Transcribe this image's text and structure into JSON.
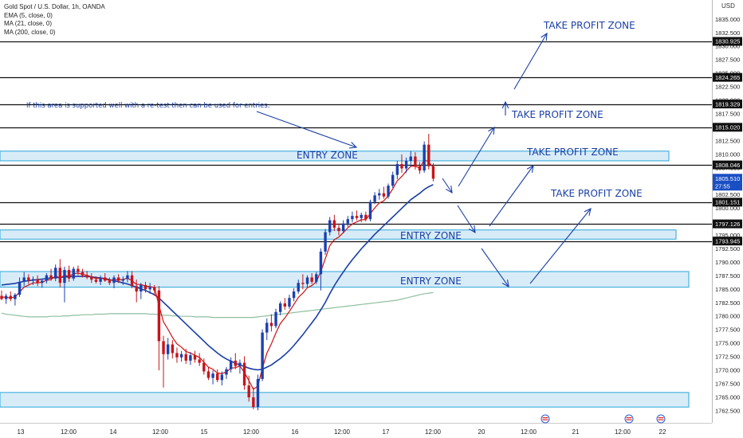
{
  "legend": {
    "symbol": "Gold Spot / U.S. Dollar, 1h, OANDA",
    "ema": "EMA (5, close, 0)",
    "ma21": "MA (21, close, 0)",
    "ma200": "MA (200, close, 0)"
  },
  "currency": "USD",
  "annotations": {
    "note": "If this area is supported well with a re-test then can be used for entries.",
    "entry_zone_labels": [
      "ENTRY ZONE",
      "ENTRY ZONE",
      "ENTRY ZONE"
    ],
    "take_profit_labels": [
      "TAKE PROFIT ZONE",
      "TAKE PROFIT ZONE",
      "TAKE PROFIT ZONE",
      "TAKE PROFIT ZONE"
    ]
  },
  "colors": {
    "up": "#1d3fb0",
    "down": "#c8141a",
    "ema": "#cc1111",
    "ma21": "#1a3fa6",
    "ma200": "#8fbf9f",
    "zone_fill": "#d8ecf8",
    "zone_border": "#2aa6d9",
    "annotation": "#1a3fa6"
  },
  "chart_data": {
    "type": "candlestick",
    "title": "Gold Spot / U.S. Dollar, 1h, OANDA",
    "ylim": [
      1761,
      1838
    ],
    "y_ticks": [
      1762.5,
      1765.0,
      1767.5,
      1770.0,
      1772.5,
      1775.0,
      1777.5,
      1780.0,
      1782.5,
      1785.0,
      1787.5,
      1790.0,
      1792.5,
      1795.0,
      1797.5,
      1800.0,
      1802.5,
      1805.0,
      1807.5,
      1810.0,
      1812.5,
      1815.0,
      1817.5,
      1820.0,
      1822.5,
      1825.0,
      1827.5,
      1830.0,
      1832.5,
      1835.0
    ],
    "x_ticks": [
      "13",
      "12:00",
      "14",
      "12:00",
      "15",
      "12:00",
      "16",
      "12:00",
      "17",
      "12:00",
      "20",
      "12:00",
      "21",
      "12:00",
      "22"
    ],
    "horizontal_levels": [
      {
        "value": 1830.925,
        "label": "1830.925"
      },
      {
        "value": 1824.265,
        "label": "1824.265"
      },
      {
        "value": 1819.329,
        "label": "1819.329"
      },
      {
        "value": 1815.02,
        "label": "1815.020"
      },
      {
        "value": 1808.046,
        "label": "1808.046"
      },
      {
        "value": 1801.151,
        "label": "1801.151"
      },
      {
        "value": 1797.126,
        "label": "1797.126"
      },
      {
        "value": 1793.945,
        "label": "1793.945"
      }
    ],
    "last_price": {
      "value": 1805.51,
      "label": "1805.510",
      "countdown": "27:55"
    },
    "zones": [
      {
        "name": "entry-zone-top",
        "from": 1808.8,
        "to": 1810.6
      },
      {
        "name": "entry-zone-middle",
        "from": 1794.3,
        "to": 1796.0
      },
      {
        "name": "entry-zone-lower",
        "from": 1785.4,
        "to": 1788.3
      },
      {
        "name": "bottom-zone",
        "from": 1763.2,
        "to": 1765.9
      }
    ],
    "candles": [
      {
        "o": 1783.8,
        "h": 1784.8,
        "l": 1783.0,
        "c": 1783.2
      },
      {
        "o": 1783.2,
        "h": 1784.2,
        "l": 1782.3,
        "c": 1783.8
      },
      {
        "o": 1783.8,
        "h": 1784.6,
        "l": 1782.8,
        "c": 1783.2
      },
      {
        "o": 1783.2,
        "h": 1784.3,
        "l": 1782.0,
        "c": 1784.0
      },
      {
        "o": 1784.0,
        "h": 1787.2,
        "l": 1783.6,
        "c": 1786.4
      },
      {
        "o": 1786.4,
        "h": 1788.2,
        "l": 1785.6,
        "c": 1787.2
      },
      {
        "o": 1787.2,
        "h": 1787.8,
        "l": 1786.0,
        "c": 1786.6
      },
      {
        "o": 1786.6,
        "h": 1787.4,
        "l": 1785.8,
        "c": 1786.9
      },
      {
        "o": 1786.9,
        "h": 1787.6,
        "l": 1785.6,
        "c": 1786.2
      },
      {
        "o": 1786.2,
        "h": 1787.0,
        "l": 1785.3,
        "c": 1786.6
      },
      {
        "o": 1786.6,
        "h": 1788.0,
        "l": 1786.1,
        "c": 1787.6
      },
      {
        "o": 1787.6,
        "h": 1788.8,
        "l": 1786.6,
        "c": 1787.0
      },
      {
        "o": 1787.0,
        "h": 1789.6,
        "l": 1786.5,
        "c": 1789.0
      },
      {
        "o": 1789.0,
        "h": 1790.6,
        "l": 1785.4,
        "c": 1786.2
      },
      {
        "o": 1786.2,
        "h": 1789.2,
        "l": 1782.6,
        "c": 1788.6
      },
      {
        "o": 1788.6,
        "h": 1789.4,
        "l": 1786.4,
        "c": 1787.0
      },
      {
        "o": 1787.0,
        "h": 1789.2,
        "l": 1786.6,
        "c": 1788.8
      },
      {
        "o": 1788.8,
        "h": 1789.4,
        "l": 1787.6,
        "c": 1788.2
      },
      {
        "o": 1788.2,
        "h": 1788.8,
        "l": 1787.2,
        "c": 1787.6
      },
      {
        "o": 1787.6,
        "h": 1788.4,
        "l": 1786.9,
        "c": 1787.2
      },
      {
        "o": 1787.2,
        "h": 1788.0,
        "l": 1786.2,
        "c": 1786.8
      },
      {
        "o": 1786.8,
        "h": 1787.4,
        "l": 1786.1,
        "c": 1786.4
      },
      {
        "o": 1786.4,
        "h": 1787.6,
        "l": 1785.8,
        "c": 1787.2
      },
      {
        "o": 1787.2,
        "h": 1788.0,
        "l": 1786.4,
        "c": 1786.6
      },
      {
        "o": 1786.6,
        "h": 1787.2,
        "l": 1785.8,
        "c": 1786.2
      },
      {
        "o": 1786.2,
        "h": 1787.6,
        "l": 1785.2,
        "c": 1787.2
      },
      {
        "o": 1787.2,
        "h": 1787.8,
        "l": 1786.2,
        "c": 1786.6
      },
      {
        "o": 1786.6,
        "h": 1787.4,
        "l": 1785.8,
        "c": 1786.9
      },
      {
        "o": 1786.9,
        "h": 1788.4,
        "l": 1786.3,
        "c": 1787.6
      },
      {
        "o": 1787.6,
        "h": 1788.4,
        "l": 1785.2,
        "c": 1785.6
      },
      {
        "o": 1785.6,
        "h": 1786.8,
        "l": 1782.6,
        "c": 1784.6
      },
      {
        "o": 1784.6,
        "h": 1786.2,
        "l": 1783.2,
        "c": 1785.8
      },
      {
        "o": 1785.8,
        "h": 1786.4,
        "l": 1784.4,
        "c": 1785.0
      },
      {
        "o": 1785.0,
        "h": 1786.2,
        "l": 1784.2,
        "c": 1785.4
      },
      {
        "o": 1785.4,
        "h": 1785.8,
        "l": 1783.8,
        "c": 1784.8
      },
      {
        "o": 1784.8,
        "h": 1785.6,
        "l": 1770.0,
        "c": 1775.4
      },
      {
        "o": 1775.4,
        "h": 1776.4,
        "l": 1766.8,
        "c": 1773.0
      },
      {
        "o": 1773.0,
        "h": 1776.0,
        "l": 1772.0,
        "c": 1774.8
      },
      {
        "o": 1774.8,
        "h": 1775.6,
        "l": 1772.2,
        "c": 1773.2
      },
      {
        "o": 1773.2,
        "h": 1774.2,
        "l": 1771.4,
        "c": 1772.4
      },
      {
        "o": 1772.4,
        "h": 1773.6,
        "l": 1771.6,
        "c": 1773.0
      },
      {
        "o": 1773.0,
        "h": 1774.0,
        "l": 1771.2,
        "c": 1771.8
      },
      {
        "o": 1771.8,
        "h": 1773.4,
        "l": 1771.0,
        "c": 1772.8
      },
      {
        "o": 1772.8,
        "h": 1773.6,
        "l": 1771.4,
        "c": 1772.0
      },
      {
        "o": 1772.0,
        "h": 1773.2,
        "l": 1770.8,
        "c": 1771.4
      },
      {
        "o": 1771.4,
        "h": 1772.2,
        "l": 1769.2,
        "c": 1769.8
      },
      {
        "o": 1769.8,
        "h": 1770.6,
        "l": 1768.2,
        "c": 1768.6
      },
      {
        "o": 1768.6,
        "h": 1770.0,
        "l": 1767.4,
        "c": 1769.4
      },
      {
        "o": 1769.4,
        "h": 1770.2,
        "l": 1767.8,
        "c": 1768.2
      },
      {
        "o": 1768.2,
        "h": 1769.8,
        "l": 1767.2,
        "c": 1769.2
      },
      {
        "o": 1769.2,
        "h": 1770.6,
        "l": 1768.4,
        "c": 1770.2
      },
      {
        "o": 1770.2,
        "h": 1772.4,
        "l": 1769.6,
        "c": 1771.8
      },
      {
        "o": 1771.8,
        "h": 1773.2,
        "l": 1770.2,
        "c": 1770.8
      },
      {
        "o": 1770.8,
        "h": 1772.0,
        "l": 1769.4,
        "c": 1771.4
      },
      {
        "o": 1771.4,
        "h": 1772.6,
        "l": 1766.4,
        "c": 1767.2
      },
      {
        "o": 1767.2,
        "h": 1769.0,
        "l": 1764.2,
        "c": 1765.0
      },
      {
        "o": 1765.0,
        "h": 1766.8,
        "l": 1762.8,
        "c": 1763.2
      },
      {
        "o": 1763.2,
        "h": 1769.2,
        "l": 1762.6,
        "c": 1768.4
      },
      {
        "o": 1768.4,
        "h": 1777.6,
        "l": 1768.0,
        "c": 1777.0
      },
      {
        "o": 1777.0,
        "h": 1779.6,
        "l": 1775.6,
        "c": 1778.8
      },
      {
        "o": 1778.8,
        "h": 1780.4,
        "l": 1777.2,
        "c": 1778.2
      },
      {
        "o": 1778.2,
        "h": 1781.4,
        "l": 1777.8,
        "c": 1780.8
      },
      {
        "o": 1780.8,
        "h": 1782.8,
        "l": 1780.2,
        "c": 1782.4
      },
      {
        "o": 1782.4,
        "h": 1783.4,
        "l": 1781.2,
        "c": 1781.8
      },
      {
        "o": 1781.8,
        "h": 1784.0,
        "l": 1781.4,
        "c": 1783.4
      },
      {
        "o": 1783.4,
        "h": 1785.2,
        "l": 1782.8,
        "c": 1784.6
      },
      {
        "o": 1784.6,
        "h": 1786.8,
        "l": 1784.2,
        "c": 1786.2
      },
      {
        "o": 1786.2,
        "h": 1787.8,
        "l": 1785.0,
        "c": 1786.0
      },
      {
        "o": 1786.0,
        "h": 1787.6,
        "l": 1785.4,
        "c": 1787.2
      },
      {
        "o": 1787.2,
        "h": 1788.0,
        "l": 1786.0,
        "c": 1786.4
      },
      {
        "o": 1786.4,
        "h": 1788.2,
        "l": 1786.0,
        "c": 1787.8
      },
      {
        "o": 1787.8,
        "h": 1792.6,
        "l": 1784.8,
        "c": 1792.0
      },
      {
        "o": 1792.0,
        "h": 1796.2,
        "l": 1791.4,
        "c": 1795.6
      },
      {
        "o": 1795.6,
        "h": 1798.4,
        "l": 1795.0,
        "c": 1797.8
      },
      {
        "o": 1797.8,
        "h": 1798.8,
        "l": 1795.8,
        "c": 1796.4
      },
      {
        "o": 1796.4,
        "h": 1797.2,
        "l": 1795.0,
        "c": 1795.8
      },
      {
        "o": 1795.8,
        "h": 1797.8,
        "l": 1795.4,
        "c": 1797.2
      },
      {
        "o": 1797.2,
        "h": 1798.6,
        "l": 1796.6,
        "c": 1798.0
      },
      {
        "o": 1798.0,
        "h": 1799.4,
        "l": 1797.4,
        "c": 1798.6
      },
      {
        "o": 1798.6,
        "h": 1799.6,
        "l": 1797.8,
        "c": 1798.2
      },
      {
        "o": 1798.2,
        "h": 1799.2,
        "l": 1797.4,
        "c": 1798.8
      },
      {
        "o": 1798.8,
        "h": 1799.4,
        "l": 1797.6,
        "c": 1798.0
      },
      {
        "o": 1798.0,
        "h": 1801.6,
        "l": 1797.6,
        "c": 1801.2
      },
      {
        "o": 1801.2,
        "h": 1803.0,
        "l": 1800.8,
        "c": 1802.4
      },
      {
        "o": 1802.4,
        "h": 1803.6,
        "l": 1801.6,
        "c": 1802.8
      },
      {
        "o": 1802.8,
        "h": 1804.0,
        "l": 1801.8,
        "c": 1802.2
      },
      {
        "o": 1802.2,
        "h": 1804.6,
        "l": 1801.8,
        "c": 1804.2
      },
      {
        "o": 1804.2,
        "h": 1806.8,
        "l": 1803.8,
        "c": 1806.2
      },
      {
        "o": 1806.2,
        "h": 1808.8,
        "l": 1805.4,
        "c": 1808.2
      },
      {
        "o": 1808.2,
        "h": 1810.0,
        "l": 1806.6,
        "c": 1807.4
      },
      {
        "o": 1807.4,
        "h": 1809.4,
        "l": 1806.6,
        "c": 1808.8
      },
      {
        "o": 1808.8,
        "h": 1810.6,
        "l": 1807.8,
        "c": 1809.6
      },
      {
        "o": 1809.6,
        "h": 1810.4,
        "l": 1807.2,
        "c": 1807.8
      },
      {
        "o": 1807.8,
        "h": 1808.6,
        "l": 1806.4,
        "c": 1807.0
      },
      {
        "o": 1807.0,
        "h": 1812.4,
        "l": 1806.6,
        "c": 1811.8
      },
      {
        "o": 1811.8,
        "h": 1813.8,
        "l": 1807.2,
        "c": 1807.8
      },
      {
        "o": 1807.8,
        "h": 1808.4,
        "l": 1805.0,
        "c": 1805.5
      }
    ],
    "ema5": [
      1783.6,
      1783.5,
      1783.4,
      1783.6,
      1784.5,
      1785.4,
      1785.8,
      1786.2,
      1786.2,
      1786.3,
      1786.7,
      1786.8,
      1787.5,
      1787.1,
      1787.6,
      1787.4,
      1787.9,
      1788.0,
      1787.8,
      1787.6,
      1787.3,
      1787.0,
      1787.1,
      1786.9,
      1786.7,
      1786.8,
      1786.8,
      1786.8,
      1787.1,
      1786.6,
      1785.9,
      1785.9,
      1785.6,
      1785.5,
      1785.3,
      1782.0,
      1779.0,
      1777.6,
      1776.1,
      1774.9,
      1774.3,
      1773.5,
      1773.2,
      1772.8,
      1772.4,
      1771.5,
      1770.6,
      1770.2,
      1769.5,
      1769.4,
      1769.7,
      1770.4,
      1770.5,
      1770.8,
      1769.6,
      1768.1,
      1766.5,
      1767.1,
      1770.4,
      1773.2,
      1774.9,
      1776.9,
      1778.7,
      1779.7,
      1780.9,
      1782.2,
      1783.5,
      1784.3,
      1785.3,
      1785.7,
      1786.4,
      1788.3,
      1790.7,
      1793.1,
      1794.2,
      1794.7,
      1795.5,
      1796.4,
      1797.1,
      1797.5,
      1797.9,
      1797.9,
      1799.0,
      1800.1,
      1801.0,
      1801.4,
      1802.3,
      1803.6,
      1805.1,
      1805.9,
      1806.9,
      1807.8,
      1807.8,
      1807.5,
      1809.0,
      1808.6,
      1807.6
    ],
    "ma21": [
      1785.8,
      1785.9,
      1786.0,
      1786.1,
      1786.3,
      1786.5,
      1786.6,
      1786.7,
      1786.8,
      1786.9,
      1787.0,
      1787.1,
      1787.2,
      1787.2,
      1787.3,
      1787.3,
      1787.4,
      1787.4,
      1787.4,
      1787.4,
      1787.3,
      1787.2,
      1787.1,
      1787.0,
      1786.8,
      1786.6,
      1786.4,
      1786.2,
      1786.0,
      1785.7,
      1785.4,
      1785.1,
      1784.8,
      1784.4,
      1784.0,
      1783.4,
      1782.6,
      1781.8,
      1781.0,
      1780.2,
      1779.4,
      1778.6,
      1777.8,
      1777.0,
      1776.2,
      1775.4,
      1774.6,
      1773.9,
      1773.2,
      1772.6,
      1772.1,
      1771.7,
      1771.3,
      1771.0,
      1770.7,
      1770.4,
      1770.2,
      1770.1,
      1770.2,
      1770.6,
      1771.0,
      1771.6,
      1772.2,
      1772.9,
      1773.7,
      1774.6,
      1775.6,
      1776.6,
      1777.7,
      1778.8,
      1779.9,
      1781.2,
      1782.6,
      1784.2,
      1785.7,
      1787.0,
      1788.2,
      1789.4,
      1790.5,
      1791.5,
      1792.5,
      1793.4,
      1794.3,
      1795.2,
      1796.0,
      1796.8,
      1797.6,
      1798.4,
      1799.2,
      1800.0,
      1800.8,
      1801.6,
      1802.2,
      1802.8,
      1803.5,
      1804.0,
      1804.4
    ],
    "ma200": [
      1780.6,
      1780.4,
      1780.3,
      1780.2,
      1780.1,
      1780.0,
      1779.9,
      1779.9,
      1779.9,
      1779.9,
      1779.9,
      1780.0,
      1780.0,
      1780.0,
      1780.1,
      1780.1,
      1780.2,
      1780.2,
      1780.3,
      1780.3,
      1780.3,
      1780.4,
      1780.4,
      1780.4,
      1780.5,
      1780.5,
      1780.5,
      1780.5,
      1780.5,
      1780.5,
      1780.5,
      1780.5,
      1780.5,
      1780.4,
      1780.4,
      1780.3,
      1780.2,
      1780.2,
      1780.1,
      1780.1,
      1780.0,
      1780.0,
      1780.0,
      1779.9,
      1779.9,
      1779.9,
      1779.9,
      1779.8,
      1779.8,
      1779.8,
      1779.8,
      1779.8,
      1779.8,
      1779.8,
      1779.8,
      1779.8,
      1779.8,
      1779.9,
      1780.0,
      1780.1,
      1780.2,
      1780.3,
      1780.4,
      1780.5,
      1780.6,
      1780.7,
      1780.8,
      1780.9,
      1781.0,
      1781.1,
      1781.2,
      1781.3,
      1781.4,
      1781.5,
      1781.6,
      1781.7,
      1781.8,
      1781.9,
      1782.0,
      1782.1,
      1782.2,
      1782.3,
      1782.4,
      1782.5,
      1782.6,
      1782.7,
      1782.8,
      1782.9,
      1783.0,
      1783.2,
      1783.4,
      1783.6,
      1783.8,
      1784.0,
      1784.2,
      1784.3,
      1784.4
    ]
  }
}
